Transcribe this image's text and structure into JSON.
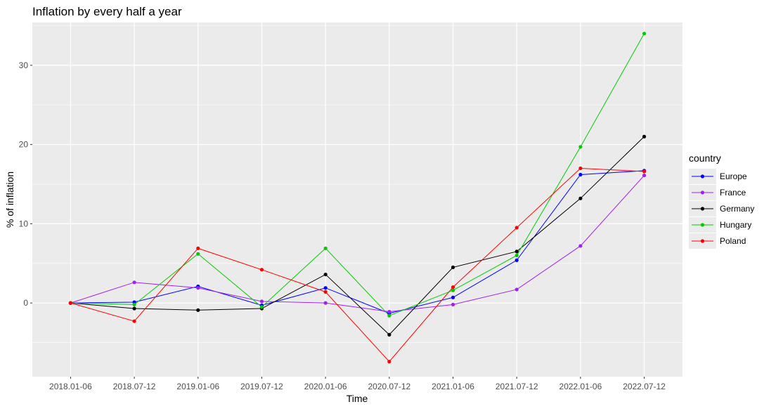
{
  "chart_data": {
    "type": "line",
    "title": "Inflation by every half a year",
    "xlabel": "Time",
    "ylabel": "% of inflation",
    "categories": [
      "2018.01-06",
      "2018.07-12",
      "2019.01-06",
      "2019.07-12",
      "2020.01-06",
      "2020.07-12",
      "2021.01-06",
      "2021.07-12",
      "2022.01-06",
      "2022.07-12"
    ],
    "y_ticks": [
      0,
      10,
      20,
      30
    ],
    "ylim": [
      -9.3,
      35.4
    ],
    "grid": true,
    "legend": {
      "title": "country",
      "position": "right"
    },
    "series": [
      {
        "name": "Europe",
        "color": "#0000ff",
        "values": [
          0,
          0.1,
          2.1,
          -0.3,
          1.9,
          -1.3,
          0.7,
          5.4,
          16.2,
          16.7
        ]
      },
      {
        "name": "France",
        "color": "#a020f0",
        "values": [
          0,
          2.6,
          1.9,
          0.2,
          0.0,
          -1.1,
          -0.2,
          1.7,
          7.2,
          16.1
        ]
      },
      {
        "name": "Germany",
        "color": "#000000",
        "values": [
          0,
          -0.7,
          -0.9,
          -0.7,
          3.6,
          -4.0,
          4.5,
          6.5,
          13.2,
          21.0
        ]
      },
      {
        "name": "Hungary",
        "color": "#00cd00",
        "values": [
          0,
          -0.2,
          6.2,
          -0.5,
          6.9,
          -1.6,
          1.6,
          6.0,
          19.7,
          34.0
        ]
      },
      {
        "name": "Poland",
        "color": "#ff0000",
        "values": [
          0,
          -2.3,
          6.9,
          4.2,
          1.4,
          -7.4,
          2.0,
          9.5,
          17.0,
          16.6
        ]
      }
    ]
  }
}
